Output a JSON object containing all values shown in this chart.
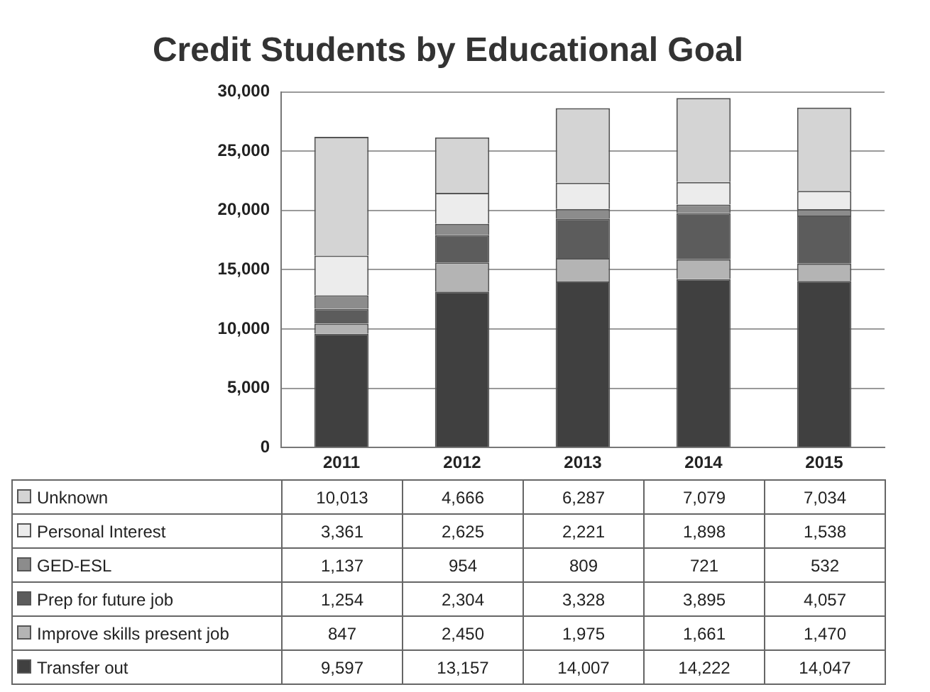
{
  "chart_data": {
    "type": "bar",
    "title": "Credit Students by Educational Goal",
    "categories": [
      "2011",
      "2012",
      "2013",
      "2014",
      "2015"
    ],
    "stacked": true,
    "ylim": [
      0,
      30000
    ],
    "yticks": [
      {
        "value": 0,
        "label": "0"
      },
      {
        "value": 5000,
        "label": "5,000"
      },
      {
        "value": 10000,
        "label": "10,000"
      },
      {
        "value": 15000,
        "label": "15,000"
      },
      {
        "value": 20000,
        "label": "20,000"
      },
      {
        "value": 25000,
        "label": "25,000"
      },
      {
        "value": 30000,
        "label": "30,000"
      }
    ],
    "grid": "y",
    "legend": "bottom",
    "series": [
      {
        "name": "Transfer out",
        "color": "#404040",
        "values": [
          9597,
          13157,
          14007,
          14222,
          14047
        ],
        "value_labels": [
          "9,597",
          "13,157",
          "14,007",
          "14,222",
          "14,047"
        ]
      },
      {
        "name": "Improve skills present job",
        "color": "#b4b4b4",
        "values": [
          847,
          2450,
          1975,
          1661,
          1470
        ],
        "value_labels": [
          "847",
          "2,450",
          "1,975",
          "1,661",
          "1,470"
        ]
      },
      {
        "name": "Prep for future job",
        "color": "#5c5c5c",
        "values": [
          1254,
          2304,
          3328,
          3895,
          4057
        ],
        "value_labels": [
          "1,254",
          "2,304",
          "3,328",
          "3,895",
          "4,057"
        ]
      },
      {
        "name": "GED-ESL",
        "color": "#8c8c8c",
        "values": [
          1137,
          954,
          809,
          721,
          532
        ],
        "value_labels": [
          "1,137",
          "954",
          "809",
          "721",
          "532"
        ]
      },
      {
        "name": "Personal Interest",
        "color": "#ececec",
        "values": [
          3361,
          2625,
          2221,
          1898,
          1538
        ],
        "value_labels": [
          "3,361",
          "2,625",
          "2,221",
          "1,898",
          "1,538"
        ]
      },
      {
        "name": "Unknown",
        "color": "#d4d4d4",
        "values": [
          10013,
          4666,
          6287,
          7079,
          7034
        ],
        "value_labels": [
          "10,013",
          "4,666",
          "6,287",
          "7,079",
          "7,034"
        ]
      }
    ]
  }
}
